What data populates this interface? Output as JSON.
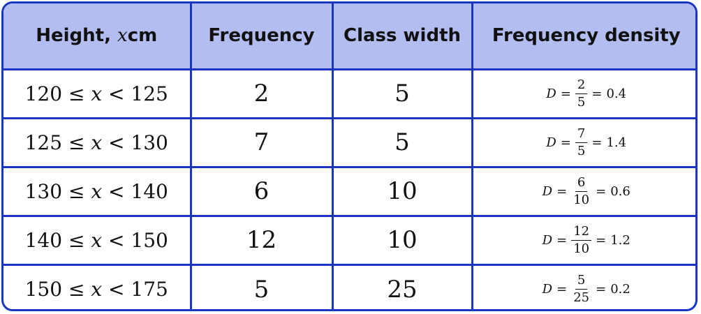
{
  "headers": {
    "height_prefix": "Height,",
    "height_var": "x",
    "height_unit": "cm",
    "frequency": "Frequency",
    "class_width": "Class width",
    "frequency_density": "Frequency density"
  },
  "rows": [
    {
      "lower": "120",
      "upper": "125",
      "frequency": "2",
      "class_width": "5",
      "density": {
        "symbol": "D",
        "numerator": "2",
        "denominator": "5",
        "result": "0.4"
      }
    },
    {
      "lower": "125",
      "upper": "130",
      "frequency": "7",
      "class_width": "5",
      "density": {
        "symbol": "D",
        "numerator": "7",
        "denominator": "5",
        "result": "1.4"
      }
    },
    {
      "lower": "130",
      "upper": "140",
      "frequency": "6",
      "class_width": "10",
      "density": {
        "symbol": "D",
        "numerator": "6",
        "denominator": "10",
        "result": "0.6"
      }
    },
    {
      "lower": "140",
      "upper": "150",
      "frequency": "12",
      "class_width": "10",
      "density": {
        "symbol": "D",
        "numerator": "12",
        "denominator": "10",
        "result": "1.2"
      }
    },
    {
      "lower": "150",
      "upper": "175",
      "frequency": "5",
      "class_width": "25",
      "density": {
        "symbol": "D",
        "numerator": "5",
        "denominator": "25",
        "result": "0.2"
      }
    }
  ],
  "symbols": {
    "le": "≤",
    "lt": "<",
    "eq": "=",
    "var": "x"
  },
  "colors": {
    "border": "#1a35c2",
    "header_bg": "#b3bdf0"
  }
}
